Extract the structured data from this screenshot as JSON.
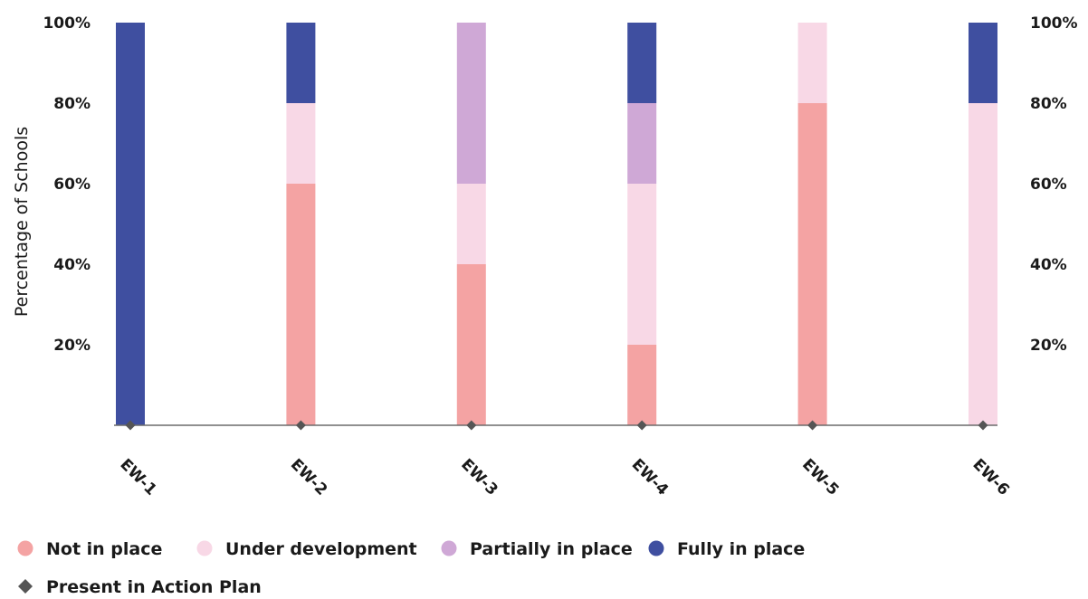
{
  "chart_data": {
    "type": "bar",
    "stacked": true,
    "categories": [
      "EW-1",
      "EW-2",
      "EW-3",
      "EW-4",
      "EW-5",
      "EW-6"
    ],
    "series": [
      {
        "name": "Not in place",
        "color": "#f4a3a3",
        "values": [
          0,
          60,
          40,
          20,
          80,
          0
        ]
      },
      {
        "name": "Under development",
        "color": "#f8d8e6",
        "values": [
          0,
          20,
          20,
          40,
          20,
          80
        ]
      },
      {
        "name": "Partially in place",
        "color": "#cfa8d6",
        "values": [
          0,
          0,
          40,
          20,
          0,
          0
        ]
      },
      {
        "name": "Fully in place",
        "color": "#3f4fa0",
        "values": [
          100,
          20,
          0,
          20,
          0,
          20
        ]
      }
    ],
    "markers": {
      "name": "Present in Action Plan",
      "color": "#555555",
      "values": [
        0,
        0,
        0,
        0,
        0,
        0
      ]
    },
    "ylabel": "Percentage of Schools",
    "xlabel": "",
    "ylim": [
      0,
      100
    ],
    "yticks": [
      20,
      40,
      60,
      80,
      100
    ],
    "ytick_labels": [
      "20%",
      "40%",
      "60%",
      "80%",
      "100%"
    ],
    "secondary_yaxis": true,
    "grid": false,
    "legend_position": "bottom-left"
  }
}
